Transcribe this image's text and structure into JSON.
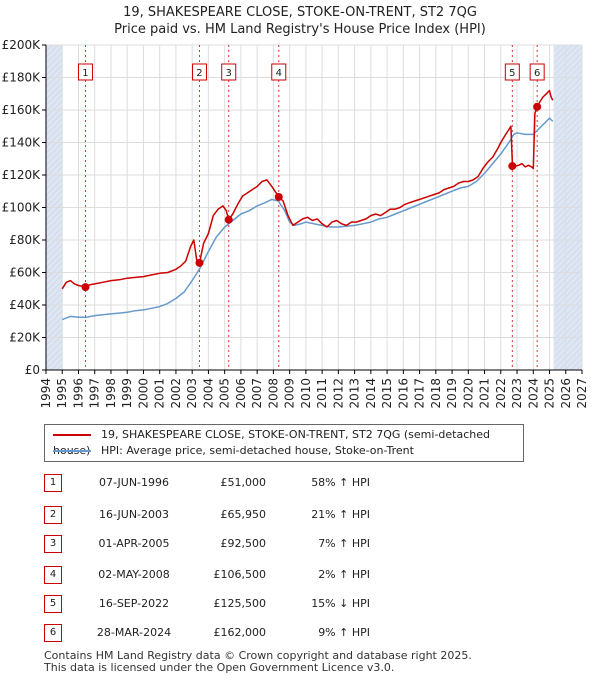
{
  "title": {
    "line1": "19, SHAKESPEARE CLOSE, STOKE-ON-TRENT, ST2 7QG",
    "line2": "Price paid vs. HM Land Registry's House Price Index (HPI)"
  },
  "legend": {
    "property": "19, SHAKESPEARE CLOSE, STOKE-ON-TRENT, ST2 7QG (semi-detached house)",
    "hpi": "HPI: Average price, semi-detached house, Stoke-on-Trent"
  },
  "colors": {
    "property": "#cc0000",
    "hpi": "#6699cc",
    "shade": "#dde6f2",
    "grid": "#dddddd",
    "axis": "#000000"
  },
  "transactions": [
    {
      "n": "1",
      "date": "07-JUN-1996",
      "price": "£51,000",
      "hpi": "58% ↑ HPI"
    },
    {
      "n": "2",
      "date": "16-JUN-2003",
      "price": "£65,950",
      "hpi": "21% ↑ HPI"
    },
    {
      "n": "3",
      "date": "01-APR-2005",
      "price": "£92,500",
      "hpi": "7% ↑ HPI"
    },
    {
      "n": "4",
      "date": "02-MAY-2008",
      "price": "£106,500",
      "hpi": "2% ↑ HPI"
    },
    {
      "n": "5",
      "date": "16-SEP-2022",
      "price": "£125,500",
      "hpi": "15% ↓ HPI"
    },
    {
      "n": "6",
      "date": "28-MAR-2024",
      "price": "£162,000",
      "hpi": "9% ↑ HPI"
    }
  ],
  "footer": {
    "line1": "Contains HM Land Registry data © Crown copyright and database right 2025.",
    "line2": "This data is licensed under the Open Government Licence v3.0."
  },
  "chart_data": {
    "type": "line",
    "title": "19, SHAKESPEARE CLOSE, STOKE-ON-TRENT, ST2 7QG — Price paid vs. HM Land Registry's House Price Index (HPI)",
    "xlabel": "",
    "ylabel": "",
    "xlim": [
      1994,
      2027
    ],
    "ylim": [
      0,
      200000
    ],
    "x_ticks": [
      1994,
      1995,
      1996,
      1997,
      1998,
      1999,
      2000,
      2001,
      2002,
      2003,
      2004,
      2005,
      2006,
      2007,
      2008,
      2009,
      2010,
      2011,
      2012,
      2013,
      2014,
      2015,
      2016,
      2017,
      2018,
      2019,
      2020,
      2021,
      2022,
      2023,
      2024,
      2025,
      2026,
      2027
    ],
    "y_ticks": [
      {
        "value": 0,
        "label": "£0"
      },
      {
        "value": 20000,
        "label": "£20K"
      },
      {
        "value": 40000,
        "label": "£40K"
      },
      {
        "value": 60000,
        "label": "£60K"
      },
      {
        "value": 80000,
        "label": "£80K"
      },
      {
        "value": 100000,
        "label": "£100K"
      },
      {
        "value": 120000,
        "label": "£120K"
      },
      {
        "value": 140000,
        "label": "£140K"
      },
      {
        "value": 160000,
        "label": "£160K"
      },
      {
        "value": 180000,
        "label": "£180K"
      },
      {
        "value": 200000,
        "label": "£200K"
      }
    ],
    "grid": true,
    "shaded_ranges": [
      [
        1994,
        1995.0
      ],
      [
        2025.25,
        2027
      ]
    ],
    "series": [
      {
        "name": "19, SHAKESPEARE CLOSE, STOKE-ON-TRENT, ST2 7QG (semi-detached house)",
        "x": [
          1995.0,
          1995.25,
          1995.5,
          1995.75,
          1996.0,
          1996.25,
          1996.43,
          1996.7,
          1997.0,
          1997.5,
          1998.0,
          1998.5,
          1999.0,
          1999.5,
          2000.0,
          2000.5,
          2001.0,
          2001.5,
          2002.0,
          2002.3,
          2002.6,
          2002.9,
          2003.1,
          2003.3,
          2003.45,
          2003.7,
          2004.0,
          2004.3,
          2004.6,
          2004.9,
          2005.1,
          2005.25,
          2005.5,
          2005.8,
          2006.1,
          2006.4,
          2006.7,
          2007.0,
          2007.3,
          2007.6,
          2007.9,
          2008.1,
          2008.33,
          2008.6,
          2008.9,
          2009.2,
          2009.5,
          2009.8,
          2010.1,
          2010.4,
          2010.7,
          2011.0,
          2011.3,
          2011.6,
          2011.9,
          2012.2,
          2012.5,
          2012.8,
          2013.1,
          2013.4,
          2013.7,
          2014.0,
          2014.3,
          2014.6,
          2014.9,
          2015.2,
          2015.5,
          2015.8,
          2016.1,
          2016.4,
          2016.7,
          2017.0,
          2017.3,
          2017.6,
          2017.9,
          2018.2,
          2018.5,
          2018.8,
          2019.1,
          2019.4,
          2019.7,
          2020.0,
          2020.3,
          2020.6,
          2020.9,
          2021.2,
          2021.5,
          2021.8,
          2022.0,
          2022.3,
          2022.5,
          2022.62,
          2022.71,
          2022.9,
          2023.1,
          2023.3,
          2023.5,
          2023.7,
          2023.9,
          2024.0,
          2024.1,
          2024.24,
          2024.4,
          2024.6,
          2024.8,
          2025.0,
          2025.1,
          2025.2
        ],
        "y": [
          50000,
          54000,
          55000,
          53000,
          52000,
          51500,
          51000,
          52500,
          53000,
          54000,
          55000,
          55500,
          56500,
          57000,
          57500,
          58500,
          59500,
          60000,
          62000,
          64000,
          67000,
          76000,
          80000,
          66000,
          65950,
          78000,
          84000,
          95000,
          99000,
          101000,
          98000,
          92500,
          96000,
          102000,
          107000,
          109000,
          111000,
          113000,
          116000,
          117000,
          113000,
          110000,
          106500,
          104000,
          95000,
          89000,
          91000,
          93000,
          94000,
          92000,
          93000,
          90000,
          88000,
          91000,
          92000,
          90000,
          89000,
          91000,
          91000,
          92000,
          93000,
          95000,
          96000,
          95000,
          97000,
          99000,
          99000,
          100000,
          102000,
          103000,
          104000,
          105000,
          106000,
          107000,
          108000,
          109000,
          111000,
          112000,
          113000,
          115000,
          116000,
          116000,
          117000,
          119000,
          124000,
          128000,
          131000,
          136000,
          140000,
          145000,
          148000,
          150000,
          128000,
          125500,
          126000,
          127000,
          125000,
          126000,
          125000,
          124000,
          158000,
          162000,
          165000,
          168000,
          170000,
          172000,
          168000,
          166000
        ]
      },
      {
        "name": "HPI: Average price, semi-detached house, Stoke-on-Trent",
        "x": [
          1995.0,
          1995.5,
          1996.0,
          1996.5,
          1997.0,
          1997.5,
          1998.0,
          1998.5,
          1999.0,
          1999.5,
          2000.0,
          2000.5,
          2001.0,
          2001.5,
          2002.0,
          2002.5,
          2003.0,
          2003.5,
          2004.0,
          2004.5,
          2005.0,
          2005.5,
          2006.0,
          2006.5,
          2007.0,
          2007.5,
          2007.9,
          2008.3,
          2008.7,
          2009.0,
          2009.3,
          2009.7,
          2010.0,
          2010.5,
          2011.0,
          2011.5,
          2012.0,
          2012.5,
          2013.0,
          2013.5,
          2014.0,
          2014.5,
          2015.0,
          2015.5,
          2016.0,
          2016.5,
          2017.0,
          2017.5,
          2018.0,
          2018.5,
          2019.0,
          2019.5,
          2020.0,
          2020.5,
          2021.0,
          2021.5,
          2022.0,
          2022.5,
          2022.8,
          2023.0,
          2023.5,
          2024.0,
          2024.5,
          2024.8,
          2025.0,
          2025.2
        ],
        "y": [
          31000,
          33000,
          32500,
          32500,
          33500,
          34000,
          34500,
          35000,
          35500,
          36500,
          37000,
          38000,
          39000,
          41000,
          44000,
          48000,
          55000,
          63000,
          73000,
          82000,
          88000,
          92000,
          96000,
          98000,
          101000,
          103000,
          105000,
          104000,
          98000,
          91000,
          89000,
          90000,
          91000,
          90000,
          89000,
          88000,
          88000,
          88500,
          89000,
          90000,
          91000,
          93000,
          94000,
          96000,
          98000,
          100000,
          102000,
          104000,
          106000,
          108000,
          110000,
          112000,
          113000,
          116000,
          121000,
          127000,
          133000,
          140000,
          145000,
          146000,
          145000,
          145000,
          150000,
          153000,
          155000,
          153000
        ]
      }
    ],
    "sale_markers": [
      {
        "label": "1",
        "x": 1996.43,
        "y": 51000
      },
      {
        "label": "2",
        "x": 2003.45,
        "y": 65950
      },
      {
        "label": "3",
        "x": 2005.25,
        "y": 92500
      },
      {
        "label": "4",
        "x": 2008.33,
        "y": 106500
      },
      {
        "label": "5",
        "x": 2022.71,
        "y": 125500
      },
      {
        "label": "6",
        "x": 2024.24,
        "y": 162000
      }
    ]
  }
}
